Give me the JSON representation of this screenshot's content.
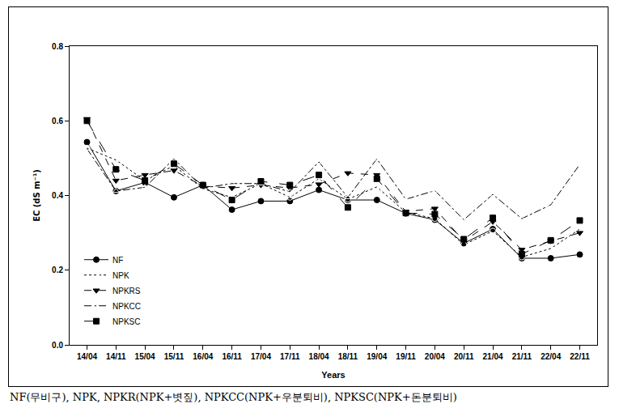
{
  "chart_data": {
    "type": "line",
    "x_label": "Years",
    "y_label": "EC (dS m⁻¹)",
    "annotations": [
      "NF(무비구), NPK, NPKR(NPK+볏짚), NPKCC(NPK+우분퇴비), NPKSC(NPK+돈분퇴비)"
    ],
    "categories": [
      "14/04",
      "14/11",
      "15/04",
      "15/11",
      "16/04",
      "16/11",
      "17/04",
      "17/11",
      "18/04",
      "18/11",
      "19/04",
      "19/11",
      "20/04",
      "20/11",
      "21/04",
      "21/11",
      "22/04",
      "22/11"
    ],
    "series": [
      {
        "name": "NF",
        "color": "#000000",
        "marker": "circle",
        "line_style": "solid",
        "values": [
          0.543,
          0.412,
          0.435,
          0.395,
          0.428,
          0.362,
          0.385,
          0.385,
          0.415,
          0.388,
          0.388,
          0.352,
          0.335,
          0.272,
          0.31,
          0.232,
          0.232,
          0.242
        ]
      },
      {
        "name": "NPK",
        "color": "#000000",
        "marker": "circle-open",
        "line_style": "dot",
        "values": [
          0.527,
          0.495,
          0.44,
          0.48,
          0.418,
          0.395,
          0.432,
          0.395,
          0.445,
          0.39,
          0.423,
          0.355,
          0.338,
          0.268,
          0.305,
          0.235,
          0.258,
          0.31
        ]
      },
      {
        "name": "NPKRS",
        "color": "#000000",
        "marker": "triangle-down",
        "line_style": "dash",
        "values": [
          0.605,
          0.44,
          0.455,
          0.467,
          0.425,
          0.42,
          0.428,
          0.42,
          0.43,
          0.46,
          0.455,
          0.357,
          0.365,
          0.278,
          0.33,
          0.255,
          0.278,
          0.3
        ]
      },
      {
        "name": "NPKCC",
        "color": "#000000",
        "marker": "triangle-up-open",
        "line_style": "dashdot",
        "values": [
          0.525,
          0.412,
          0.422,
          0.498,
          0.42,
          0.432,
          0.432,
          0.41,
          0.49,
          0.395,
          0.498,
          0.39,
          0.413,
          0.335,
          0.403,
          0.338,
          0.375,
          0.483
        ]
      },
      {
        "name": "NPKSC",
        "color": "#000000",
        "marker": "square",
        "line_style": "longdash",
        "values": [
          0.6,
          0.47,
          0.44,
          0.485,
          0.428,
          0.388,
          0.438,
          0.428,
          0.455,
          0.368,
          0.445,
          0.353,
          0.35,
          0.283,
          0.34,
          0.243,
          0.28,
          0.333
        ]
      }
    ],
    "ylim": [
      0,
      0.8
    ],
    "yticks": [
      {
        "value": 0,
        "label": "0.0"
      },
      0.2,
      0.4,
      0.6,
      0.8
    ],
    "grid": false,
    "legend": "lower left"
  }
}
